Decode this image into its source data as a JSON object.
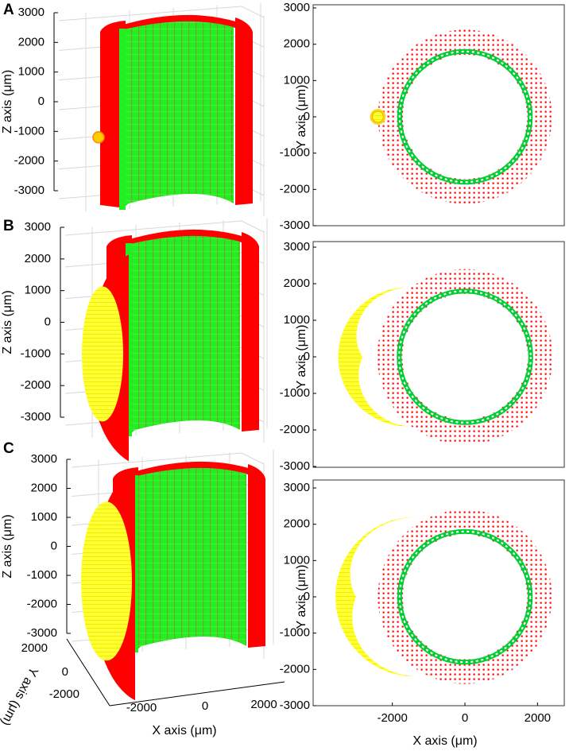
{
  "figure": {
    "panel_labels": [
      "A",
      "B",
      "C"
    ]
  },
  "colors": {
    "outer_tissue": "#ff0000",
    "inner_ring": "#00dd33",
    "lesion": "#ffff00",
    "grid": "#d8d8d8",
    "box": "#333333"
  },
  "chart_data": [
    {
      "panel": "A",
      "view": "3d",
      "type": "scatter",
      "zlabel": "Z axis (μm)",
      "zticks": [
        3000,
        2000,
        1000,
        0,
        -1000,
        -2000,
        -3000
      ],
      "zlim": [
        -3000,
        3000
      ],
      "lesion": {
        "z_center": -1200,
        "extent": "small"
      }
    },
    {
      "panel": "A",
      "view": "2d",
      "type": "scatter",
      "ylabel": "Y axis (μm)",
      "yticks": [
        3000,
        2000,
        1000,
        0,
        -1000,
        -2000,
        -3000
      ],
      "ylim": [
        -3000,
        3000
      ],
      "xlim": [
        -3000,
        3000
      ],
      "outer_radius": 2400,
      "inner_ring_radius": 1800,
      "lesion": {
        "cx": -2400,
        "cy": 0,
        "r": 150
      }
    },
    {
      "panel": "B",
      "view": "3d",
      "type": "scatter",
      "zlabel": "Z axis (μm)",
      "zticks": [
        3000,
        2000,
        1000,
        0,
        -1000,
        -2000,
        -3000
      ],
      "zlim": [
        -3000,
        3000
      ],
      "lesion": {
        "z_center": -1000,
        "extent": "medium"
      }
    },
    {
      "panel": "B",
      "view": "2d",
      "type": "scatter",
      "ylabel": "Y axis (μm)",
      "yticks": [
        3000,
        2000,
        1000,
        0,
        -1000,
        -2000,
        -3000
      ],
      "ylim": [
        -3000,
        3000
      ],
      "xlim": [
        -3000,
        3000
      ],
      "outer_radius": 2400,
      "inner_ring_radius": 1800,
      "lesion": {
        "x_left": -2800,
        "x_right": -1700,
        "y_top": 1900,
        "y_bottom": -1900
      }
    },
    {
      "panel": "C",
      "view": "3d",
      "type": "scatter",
      "zlabel": "Z axis (μm)",
      "zticks": [
        3000,
        2000,
        1000,
        0,
        -1000,
        -2000,
        -3000
      ],
      "zlim": [
        -3000,
        3000
      ],
      "xlabel": "X axis (μm)",
      "xticks": [
        -2000,
        0,
        2000
      ],
      "ylabel": "Y axis (μm)",
      "yticks": [
        2000,
        0,
        -2000
      ],
      "lesion": {
        "z_center": -1200,
        "extent": "large"
      }
    },
    {
      "panel": "C",
      "view": "2d",
      "type": "scatter",
      "ylabel": "Y axis (μm)",
      "yticks": [
        3000,
        2000,
        1000,
        0,
        -1000,
        -2000,
        -3000
      ],
      "ylim": [
        -3000,
        3000
      ],
      "xlabel": "X axis (μm)",
      "xticks": [
        -2000,
        0,
        2000
      ],
      "xlim": [
        -3000,
        3000
      ],
      "outer_radius": 2400,
      "inner_ring_radius": 1800,
      "lesion": {
        "x_left": -3000,
        "x_right": -1500,
        "y_top": 2200,
        "y_bottom": -2200
      }
    }
  ]
}
